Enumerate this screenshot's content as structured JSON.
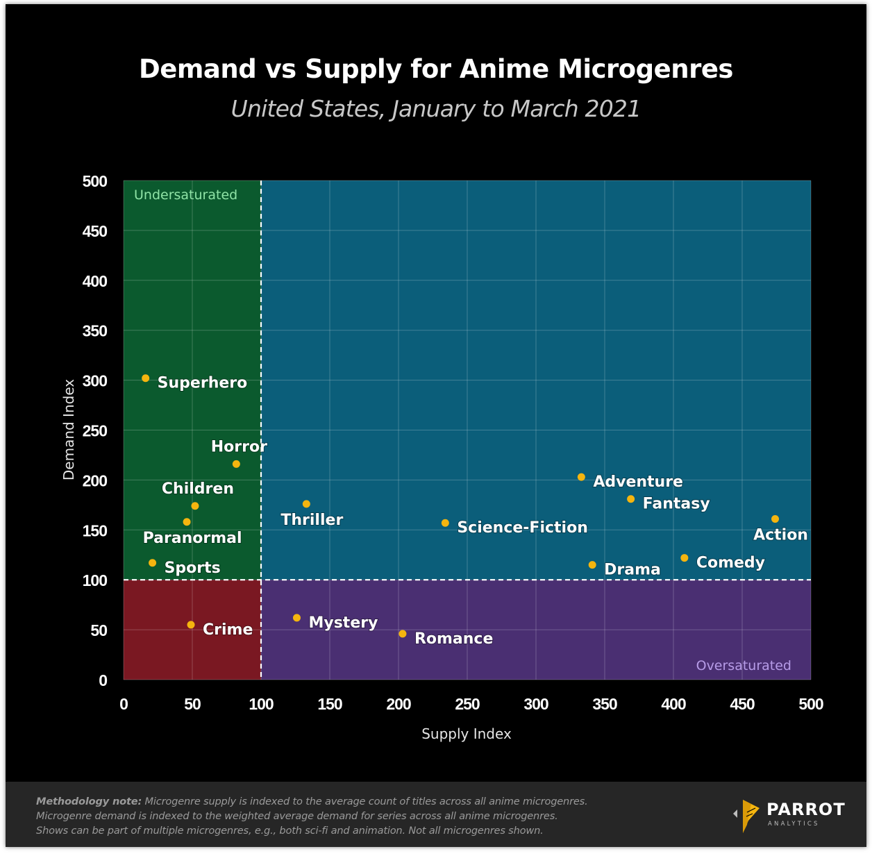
{
  "title": "Demand vs Supply for Anime Microgenres",
  "subtitle": "United States, January to March 2021",
  "chart_data": {
    "type": "scatter",
    "xlabel": "Supply Index",
    "ylabel": "Demand Index",
    "xlim": [
      0,
      500
    ],
    "ylim": [
      0,
      500
    ],
    "xticks": [
      "0",
      "50",
      "100",
      "150",
      "200",
      "250",
      "300",
      "350",
      "400",
      "450",
      "500"
    ],
    "yticks": [
      "0",
      "50",
      "100",
      "150",
      "200",
      "250",
      "300",
      "350",
      "400",
      "450",
      "500"
    ],
    "grid": true,
    "thresholds": {
      "x": 100,
      "y": 100
    },
    "regions": [
      {
        "name": "Undersaturated",
        "x": [
          0,
          100
        ],
        "y": [
          100,
          500
        ],
        "color": "#0b5a2e"
      },
      {
        "name": "",
        "x": [
          100,
          500
        ],
        "y": [
          100,
          500
        ],
        "color": "#0b5e7a"
      },
      {
        "name": "",
        "x": [
          0,
          100
        ],
        "y": [
          0,
          100
        ],
        "color": "#7a1822"
      },
      {
        "name": "Oversaturated",
        "x": [
          100,
          500
        ],
        "y": [
          0,
          100
        ],
        "color": "#4a2f72"
      }
    ],
    "region_labels": [
      {
        "text": "Undersaturated",
        "color": "#8fe3a6"
      },
      {
        "text": "Oversaturated",
        "color": "#b79ce8"
      }
    ],
    "point_color": "#f5b50f",
    "points": [
      {
        "label": "Superhero",
        "x": 16,
        "y": 302,
        "pos": "right"
      },
      {
        "label": "Horror",
        "x": 82,
        "y": 216,
        "pos": "above"
      },
      {
        "label": "Children",
        "x": 52,
        "y": 174,
        "pos": "above"
      },
      {
        "label": "Paranormal",
        "x": 46,
        "y": 158,
        "pos": "below"
      },
      {
        "label": "Sports",
        "x": 21,
        "y": 117,
        "pos": "right"
      },
      {
        "label": "Crime",
        "x": 49,
        "y": 55,
        "pos": "right"
      },
      {
        "label": "Thriller",
        "x": 133,
        "y": 176,
        "pos": "below"
      },
      {
        "label": "Science-Fiction",
        "x": 234,
        "y": 157,
        "pos": "right"
      },
      {
        "label": "Adventure",
        "x": 333,
        "y": 203,
        "pos": "right"
      },
      {
        "label": "Fantasy",
        "x": 369,
        "y": 181,
        "pos": "right"
      },
      {
        "label": "Action",
        "x": 474,
        "y": 161,
        "pos": "below"
      },
      {
        "label": "Comedy",
        "x": 408,
        "y": 122,
        "pos": "right"
      },
      {
        "label": "Drama",
        "x": 341,
        "y": 115,
        "pos": "right"
      },
      {
        "label": "Mystery",
        "x": 126,
        "y": 62,
        "pos": "right"
      },
      {
        "label": "Romance",
        "x": 203,
        "y": 46,
        "pos": "right"
      }
    ]
  },
  "footer": {
    "note_bold": "Methodology note:",
    "note_line1": " Microgenre supply is indexed to the average count of titles across all anime microgenres.",
    "note_line2": "Microgenre demand is indexed to the weighted average demand for series across all anime microgenres.",
    "note_line3": "Shows can be part of multiple microgenres, e.g., both sci-fi and animation. Not all microgenres shown.",
    "logo_text": "PARROT",
    "logo_subtext": "ANALYTICS"
  }
}
